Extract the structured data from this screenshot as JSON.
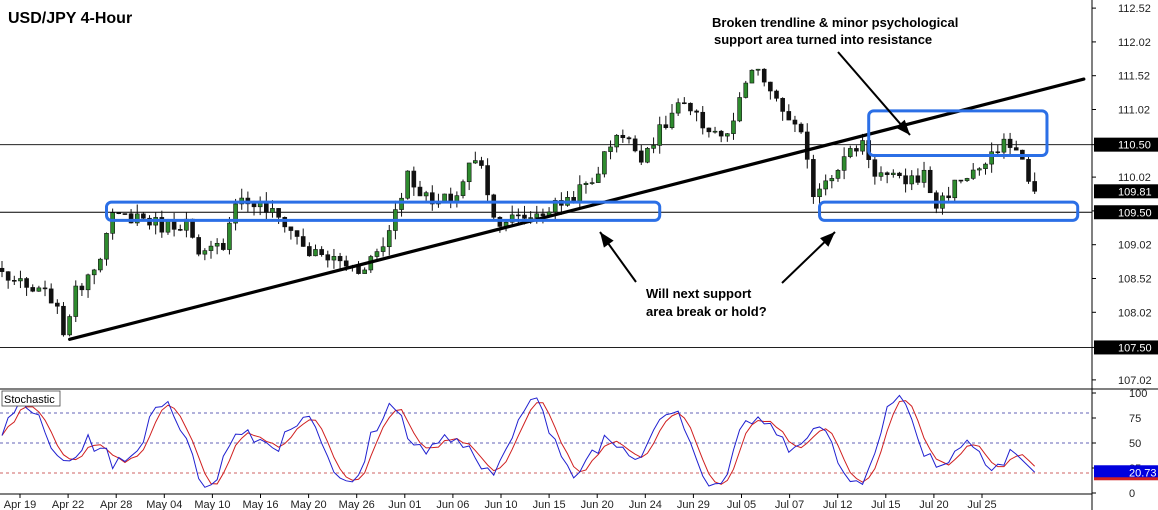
{
  "chart_data": {
    "type": "candlestick",
    "title": "USD/JPY 4-Hour",
    "price_axis": {
      "ylim": [
        106.9,
        112.64
      ],
      "ticks": [
        "112.52",
        "112.02",
        "111.52",
        "111.02",
        "110.50",
        "110.02",
        "109.52",
        "109.02",
        "108.52",
        "108.02",
        "107.50",
        "107.02"
      ]
    },
    "x_tick_labels": [
      "Apr 19",
      "Apr 22",
      "Apr 28",
      "May 04",
      "May 10",
      "May 16",
      "May 20",
      "May 26",
      "Jun 01",
      "Jun 06",
      "Jun 10",
      "Jun 15",
      "Jun 20",
      "Jun 24",
      "Jun 29",
      "Jul 05",
      "Jul 07",
      "Jul 12",
      "Jul 15",
      "Jul 20",
      "Jul 25"
    ],
    "price_path": [
      [
        0,
        108.6
      ],
      [
        4,
        108.35
      ],
      [
        8,
        108.25
      ],
      [
        10,
        107.75
      ],
      [
        12,
        108.3
      ],
      [
        16,
        108.9
      ],
      [
        18,
        109.4
      ],
      [
        22,
        109.45
      ],
      [
        26,
        109.3
      ],
      [
        30,
        109.35
      ],
      [
        32,
        108.8
      ],
      [
        36,
        109.05
      ],
      [
        38,
        109.7
      ],
      [
        42,
        109.6
      ],
      [
        46,
        109.35
      ],
      [
        50,
        108.9
      ],
      [
        54,
        108.8
      ],
      [
        58,
        108.65
      ],
      [
        62,
        109.0
      ],
      [
        64,
        109.55
      ],
      [
        66,
        110.05
      ],
      [
        70,
        109.6
      ],
      [
        74,
        109.75
      ],
      [
        76,
        110.2
      ],
      [
        78,
        110.25
      ],
      [
        80,
        109.4
      ],
      [
        84,
        109.4
      ],
      [
        88,
        109.5
      ],
      [
        92,
        109.7
      ],
      [
        96,
        109.95
      ],
      [
        100,
        110.7
      ],
      [
        104,
        110.35
      ],
      [
        108,
        110.8
      ],
      [
        110,
        111.1
      ],
      [
        114,
        110.8
      ],
      [
        118,
        110.6
      ],
      [
        120,
        111.1
      ],
      [
        122,
        111.6
      ],
      [
        124,
        111.45
      ],
      [
        126,
        111.1
      ],
      [
        128,
        110.9
      ],
      [
        130,
        110.6
      ],
      [
        132,
        109.8
      ],
      [
        136,
        110.2
      ],
      [
        140,
        110.55
      ],
      [
        142,
        110.1
      ],
      [
        146,
        109.95
      ],
      [
        150,
        110.05
      ],
      [
        152,
        109.6
      ],
      [
        156,
        110.0
      ],
      [
        160,
        110.2
      ],
      [
        162,
        110.4
      ],
      [
        164,
        110.55
      ],
      [
        166,
        110.25
      ],
      [
        168,
        109.81
      ]
    ],
    "horizontal_levels": [
      {
        "value": 110.5,
        "label": "110.50"
      },
      {
        "value": 109.5,
        "label": "109.50"
      },
      {
        "value": 107.5,
        "label": "107.50"
      }
    ],
    "current_price": {
      "value": 109.81,
      "label": "109.81"
    },
    "trendline": {
      "from": [
        11,
        107.62
      ],
      "to": [
        176,
        111.47
      ]
    },
    "zones": [
      {
        "x_from": 17,
        "x_to": 107,
        "y_from": 109.38,
        "y_to": 109.65
      },
      {
        "x_from": 133,
        "x_to": 175,
        "y_from": 109.38,
        "y_to": 109.65
      },
      {
        "x_from": 141,
        "x_to": 170,
        "y_from": 110.34,
        "y_to": 111.0
      }
    ],
    "annotations": [
      {
        "lines": [
          "Broken trendline & minor psychological",
          "support area turned into resistance"
        ]
      },
      {
        "lines": [
          "Will next support",
          "area break or hold?"
        ]
      }
    ],
    "indicator": {
      "name": "Stochastic",
      "ylim": [
        0,
        100
      ],
      "ticks": [
        "100",
        "75",
        "50",
        "25",
        "0"
      ],
      "levels": [
        80,
        50,
        20
      ],
      "current_value": "20.73",
      "main_color": "#2020d0",
      "signal_color": "#d02020"
    },
    "colors": {
      "up": "#2e8b2e",
      "down": "#111111",
      "zone": "#2b6fe6",
      "tag_bg": "#000000",
      "stoch_tag_bg": "#0000dd"
    }
  }
}
